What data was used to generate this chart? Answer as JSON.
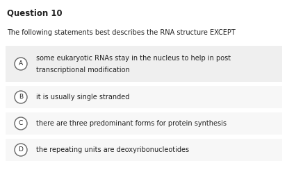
{
  "title": "Question 10",
  "question": "The following statements best describes the RNA structure EXCEPT",
  "options": [
    {
      "label": "A",
      "line1": "some eukaryotic RNAs stay in the nucleus to help in post",
      "line2": "transcriptional modification",
      "two_lines": true
    },
    {
      "label": "B",
      "line1": "it is usually single stranded",
      "line2": "",
      "two_lines": false
    },
    {
      "label": "C",
      "line1": "there are three predominant forms for protein synthesis",
      "line2": "",
      "two_lines": false
    },
    {
      "label": "D",
      "line1": "the repeating units are deoxyribonucleotides",
      "line2": "",
      "two_lines": false
    }
  ],
  "bg_color": "#ffffff",
  "option_a_bg": "#efefef",
  "option_bg": "#f7f7f7",
  "text_color": "#222222",
  "circle_edge_color": "#666666",
  "circle_face_color": "#ffffff",
  "title_fontsize": 8.5,
  "question_fontsize": 7.0,
  "option_fontsize": 7.0,
  "label_fontsize": 6.5
}
